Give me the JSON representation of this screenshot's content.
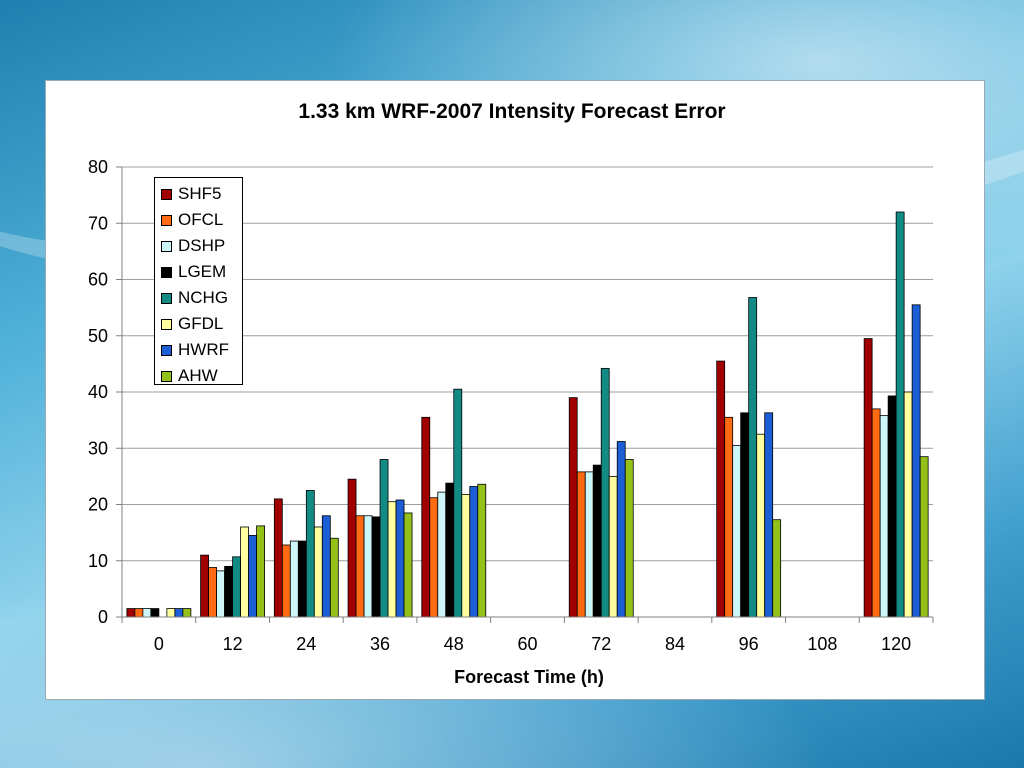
{
  "chart_data": {
    "type": "bar",
    "title": "1.33 km WRF-2007 Intensity Forecast Error",
    "xlabel": "Forecast Time (h)",
    "ylabel": "",
    "ylim": [
      0,
      80
    ],
    "yticks": [
      0,
      10,
      20,
      30,
      40,
      50,
      60,
      70,
      80
    ],
    "grid": true,
    "legend_position": "top-left",
    "categories": [
      "0",
      "12",
      "24",
      "36",
      "48",
      "60",
      "72",
      "84",
      "96",
      "108",
      "120"
    ],
    "series": [
      {
        "name": "SHF5",
        "color": "#a00000",
        "values": [
          1.5,
          11,
          21,
          24.5,
          35.5,
          null,
          39,
          null,
          45.5,
          null,
          49.5
        ]
      },
      {
        "name": "OFCL",
        "color": "#ff6a13",
        "values": [
          1.5,
          8.8,
          12.8,
          18,
          21.2,
          null,
          25.8,
          null,
          35.5,
          null,
          37
        ]
      },
      {
        "name": "DSHP",
        "color": "#ccf6f8",
        "values": [
          1.5,
          8.2,
          13.5,
          18,
          22.2,
          null,
          25.8,
          null,
          30.5,
          null,
          35.8
        ]
      },
      {
        "name": "LGEM",
        "color": "#000000",
        "values": [
          1.5,
          9,
          13.5,
          17.8,
          23.8,
          null,
          27,
          null,
          36.3,
          null,
          39.3
        ]
      },
      {
        "name": "NCHG",
        "color": "#138b85",
        "values": [
          null,
          10.7,
          22.5,
          28,
          40.5,
          null,
          44.2,
          null,
          56.8,
          null,
          72
        ]
      },
      {
        "name": "GFDL",
        "color": "#ffffa0",
        "values": [
          1.5,
          16,
          16,
          20.5,
          21.8,
          null,
          25,
          null,
          32.5,
          null,
          40
        ]
      },
      {
        "name": "HWRF",
        "color": "#1c5ed6",
        "values": [
          1.5,
          14.5,
          18,
          20.8,
          23.2,
          null,
          31.2,
          null,
          36.3,
          null,
          55.5
        ]
      },
      {
        "name": "AHW",
        "color": "#93c11a",
        "values": [
          1.5,
          16.2,
          14,
          18.5,
          23.6,
          null,
          28,
          null,
          17.3,
          null,
          28.5
        ]
      }
    ]
  }
}
